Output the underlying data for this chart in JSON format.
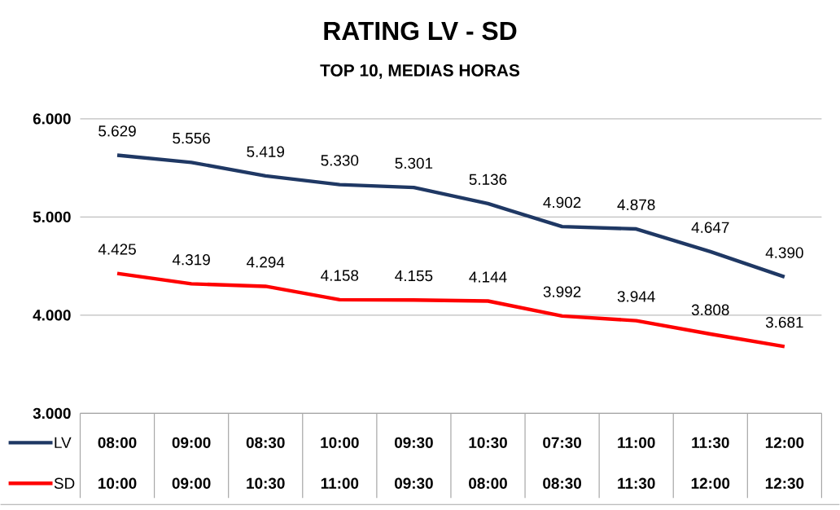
{
  "chart_data": {
    "type": "line",
    "title": "RATING LV - SD",
    "subtitle": "TOP 10, MEDIAS HORAS",
    "categories": [
      "08:00",
      "09:00",
      "08:30",
      "10:00",
      "09:30",
      "10:30",
      "07:30",
      "11:00",
      "11:30",
      "12:00"
    ],
    "annotations": [
      "10:00",
      "09:00",
      "10:30",
      "11:00",
      "09:30",
      "08:00",
      "08:30",
      "11:30",
      "12:00",
      "12:30"
    ],
    "series": [
      {
        "name": "LV",
        "color": "#1f3864",
        "values": [
          5629,
          5556,
          5419,
          5330,
          5301,
          5136,
          4902,
          4878,
          4647,
          4390
        ],
        "value_labels": [
          "5.629",
          "5.556",
          "5.419",
          "5.330",
          "5.301",
          "5.136",
          "4.902",
          "4.878",
          "4.647",
          "4.390"
        ]
      },
      {
        "name": "SD",
        "color": "#ff0000",
        "values": [
          4425,
          4319,
          4294,
          4158,
          4155,
          4144,
          3992,
          3944,
          3808,
          3681
        ],
        "value_labels": [
          "4.425",
          "4.319",
          "4.294",
          "4.158",
          "4.155",
          "4.144",
          "3.992",
          "3.944",
          "3.808",
          "3.681"
        ]
      }
    ],
    "ylim": [
      3000,
      6000
    ],
    "yticks": [
      {
        "value": 3000,
        "label": "3.000"
      },
      {
        "value": 4000,
        "label": "4.000"
      },
      {
        "value": 5000,
        "label": "5.000"
      },
      {
        "value": 6000,
        "label": "6.000"
      }
    ],
    "grid": "y",
    "legend": "bottom left",
    "marker": "none",
    "line_style": "solid"
  }
}
